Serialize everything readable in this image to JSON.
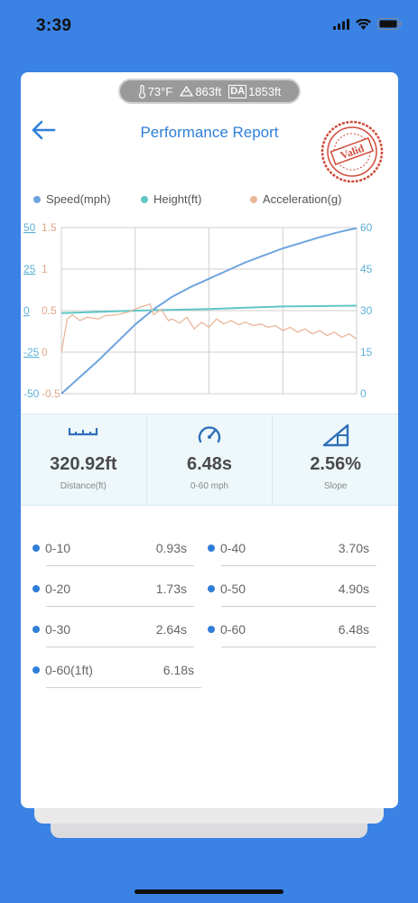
{
  "status": {
    "time": "3:39"
  },
  "env": {
    "temperature": "73°F",
    "altitude": "863ft",
    "da_label": "DA",
    "density_altitude": "1853ft"
  },
  "header": {
    "title": "Performance Report",
    "stamp": "Valid"
  },
  "legend": [
    {
      "label": "Speed(mph)",
      "color": "#6ea4de"
    },
    {
      "label": "Height(ft)",
      "color": "#5fc6c6"
    },
    {
      "label": "Acceleration(g)",
      "color": "#e9b79a"
    }
  ],
  "chart_data": {
    "type": "line",
    "xlabel": "",
    "grid": true,
    "left_axis_speed_ticks": [
      "50",
      "25",
      "0",
      "-25",
      "-50"
    ],
    "left_axis_accel_ticks": [
      "1.5",
      "1",
      "0.5",
      "0",
      "-0.5"
    ],
    "right_axis_ticks": [
      "60",
      "45",
      "30",
      "15",
      "0"
    ],
    "series": [
      {
        "name": "Speed(mph)",
        "axis": "right",
        "color": "#6ea4de",
        "x": [
          0,
          0.25,
          0.5,
          0.75,
          1.0,
          1.25,
          1.5,
          1.75,
          2.0,
          2.25,
          2.5,
          2.75,
          3.0,
          3.25,
          3.5,
          3.75,
          4.0
        ],
        "values": [
          0,
          6,
          12,
          18.5,
          25,
          30.5,
          35,
          38.5,
          41.5,
          44.5,
          47.5,
          50,
          52.5,
          54.5,
          56.5,
          58.3,
          59.8
        ]
      },
      {
        "name": "Height(ft)",
        "axis": "speed-left",
        "color": "#5fc6c6",
        "x": [
          0,
          1,
          2,
          3,
          4
        ],
        "values": [
          -1.5,
          0,
          1,
          2.5,
          3
        ]
      },
      {
        "name": "Acceleration(g)",
        "axis": "accel-left",
        "color": "#e9b79a",
        "x": [
          0,
          0.08,
          0.15,
          0.25,
          0.35,
          0.5,
          0.6,
          0.75,
          0.9,
          1.0,
          1.1,
          1.2,
          1.25,
          1.35,
          1.45,
          1.5,
          1.6,
          1.7,
          1.8,
          1.9,
          2.0,
          2.1,
          2.2,
          2.3,
          2.4,
          2.5,
          2.6,
          2.7,
          2.8,
          2.9,
          3.0,
          3.1,
          3.2,
          3.3,
          3.4,
          3.5,
          3.6,
          3.7,
          3.8,
          3.9,
          4.0
        ],
        "values": [
          0,
          0.4,
          0.45,
          0.38,
          0.42,
          0.4,
          0.44,
          0.45,
          0.48,
          0.52,
          0.55,
          0.58,
          0.45,
          0.52,
          0.38,
          0.4,
          0.35,
          0.42,
          0.28,
          0.36,
          0.3,
          0.4,
          0.34,
          0.38,
          0.33,
          0.36,
          0.32,
          0.34,
          0.3,
          0.32,
          0.26,
          0.3,
          0.24,
          0.28,
          0.22,
          0.26,
          0.2,
          0.24,
          0.18,
          0.22,
          0.16
        ]
      }
    ]
  },
  "stats": [
    {
      "value": "320.92ft",
      "label": "Distance(ft)",
      "icon": "ruler-icon"
    },
    {
      "value": "6.48s",
      "label": "0-60 mph",
      "icon": "speedometer-icon"
    },
    {
      "value": "2.56%",
      "label": "Slope",
      "icon": "slope-icon"
    }
  ],
  "splits": [
    {
      "label": "0-10",
      "value": "0.93s"
    },
    {
      "label": "0-40",
      "value": "3.70s"
    },
    {
      "label": "0-20",
      "value": "1.73s"
    },
    {
      "label": "0-50",
      "value": "4.90s"
    },
    {
      "label": "0-30",
      "value": "2.64s"
    },
    {
      "label": "0-60",
      "value": "6.48s"
    },
    {
      "label": "0-60(1ft)",
      "value": "6.18s"
    }
  ]
}
